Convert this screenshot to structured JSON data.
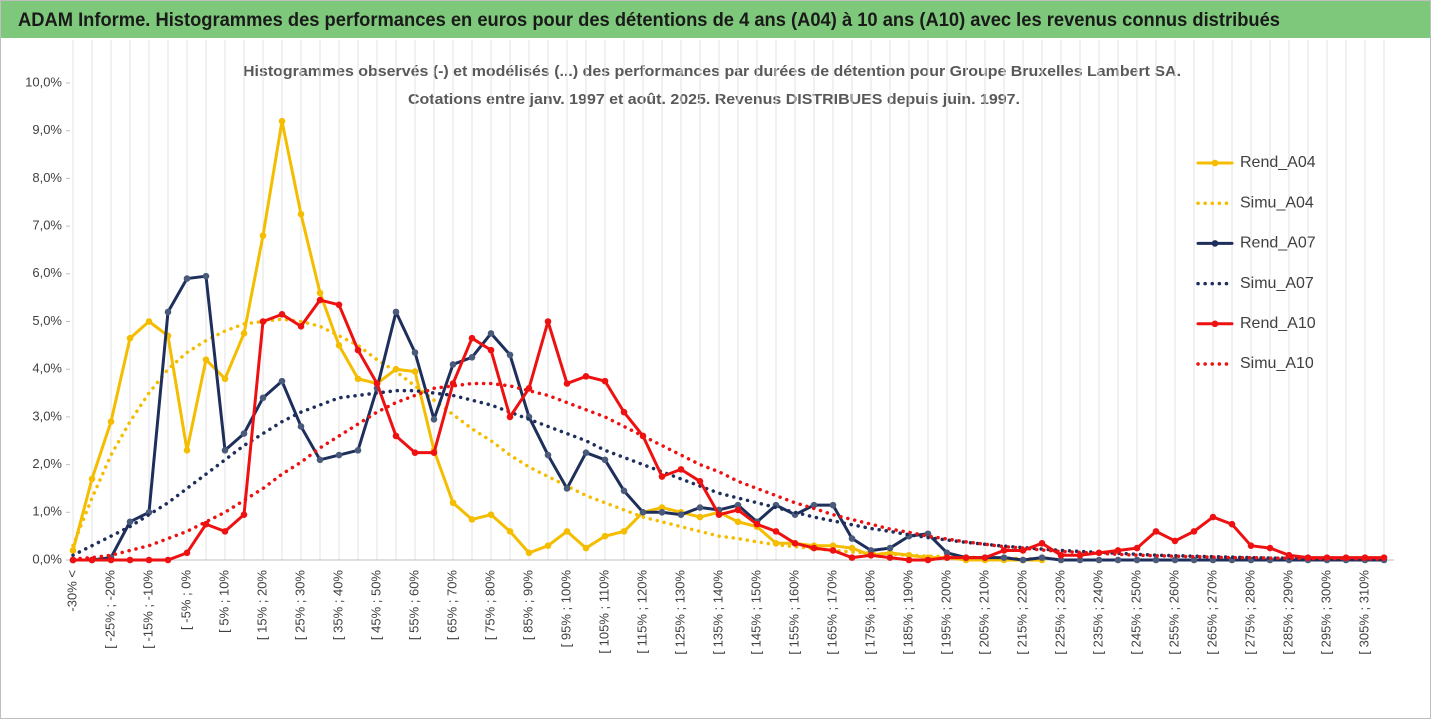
{
  "chart_data": {
    "type": "line",
    "title": "ADAM Informe. Histogrammes des performances en euros pour des détentions de 4 ans (A04) à 10 ans (A10) avec les revenus connus distribués",
    "subtitle": [
      "Histogrammes observés (-) et modélisés (...) des performances par durées de détention pour Groupe Bruxelles Lambert SA.",
      "Cotations entre janv. 1997 et août. 2025. Revenus DISTRIBUES depuis juin. 1997."
    ],
    "categories": [
      "-30% <",
      null,
      "[ -25% ; -20%",
      null,
      "[ -15% ; -10%",
      null,
      "[ -5% ; 0%",
      null,
      "[ 5% ; 10%",
      null,
      "[ 15% ; 20%",
      null,
      "[ 25% ; 30%",
      null,
      "[ 35% ; 40%",
      null,
      "[ 45% ; 50%",
      null,
      "[ 55% ; 60%",
      null,
      "[ 65% ; 70%",
      null,
      "[ 75% ; 80%",
      null,
      "[ 85% ; 90%",
      null,
      "[ 95% ; 100%",
      null,
      "[ 105% ; 110%",
      null,
      "[ 115% ; 120%",
      null,
      "[ 125% ; 130%",
      null,
      "[ 135% ; 140%",
      null,
      "[ 145% ; 150%",
      null,
      "[ 155% ; 160%",
      null,
      "[ 165% ; 170%",
      null,
      "[ 175% ; 180%",
      null,
      "[ 185% ; 190%",
      null,
      "[ 195% ; 200%",
      null,
      "[ 205% ; 210%",
      null,
      "[ 215% ; 220%",
      null,
      "[ 225% ; 230%",
      null,
      "[ 235% ; 240%",
      null,
      "[ 245% ; 250%",
      null,
      "[ 255% ; 260%",
      null,
      "[ 265% ; 270%",
      null,
      "[ 275% ; 280%",
      null,
      "[ 285% ; 290%",
      null,
      "[ 295% ; 300%",
      null,
      "[ 305% ; 310%",
      null
    ],
    "series": [
      {
        "name": "Rend_A04",
        "color": "#f5bd00",
        "style": "solid",
        "markers": true,
        "values": [
          0.2,
          1.7,
          2.9,
          4.65,
          5.0,
          4.7,
          2.3,
          4.2,
          3.8,
          4.75,
          6.8,
          9.2,
          7.25,
          5.6,
          4.5,
          3.8,
          3.7,
          4.0,
          3.95,
          2.3,
          1.2,
          0.85,
          0.95,
          0.6,
          0.15,
          0.3,
          0.6,
          0.25,
          0.5,
          0.6,
          1.0,
          1.1,
          1.0,
          0.9,
          1.0,
          0.8,
          0.7,
          0.35,
          0.35,
          0.3,
          0.3,
          0.25,
          0.1,
          0.15,
          0.1,
          0.05,
          0.05,
          0,
          0,
          0,
          0,
          0,
          null,
          null,
          null,
          null,
          null,
          null,
          null,
          null,
          null,
          null,
          null,
          null,
          null,
          null,
          null,
          null,
          null,
          null
        ]
      },
      {
        "name": "Simu_A04",
        "color": "#f5bd00",
        "style": "dotted",
        "markers": false,
        "values": [
          0.3,
          1.3,
          2.2,
          2.9,
          3.5,
          4.0,
          4.35,
          4.6,
          4.8,
          4.95,
          5.0,
          5.05,
          5.0,
          4.9,
          4.7,
          4.5,
          4.2,
          3.95,
          3.65,
          3.35,
          3.05,
          2.75,
          2.5,
          2.2,
          1.95,
          1.75,
          1.55,
          1.35,
          1.2,
          1.05,
          0.9,
          0.8,
          0.7,
          0.6,
          0.5,
          0.45,
          0.38,
          0.32,
          0.28,
          0.24,
          0.2,
          0.17,
          0.14,
          0.12,
          0.1,
          0.08,
          0.07,
          0.06,
          0.05,
          0.04,
          0.03,
          0.02,
          null,
          null,
          null,
          null,
          null,
          null,
          null,
          null,
          null,
          null,
          null,
          null,
          null,
          null,
          null,
          null,
          null,
          null
        ]
      },
      {
        "name": "Rend_A07",
        "color": "#1f2f5c",
        "style": "solid",
        "markers": true,
        "values": [
          0,
          0,
          0.05,
          0.8,
          1.0,
          5.2,
          5.9,
          5.95,
          2.3,
          2.65,
          3.4,
          3.75,
          2.8,
          2.1,
          2.2,
          2.3,
          3.6,
          5.2,
          4.35,
          2.95,
          4.1,
          4.25,
          4.75,
          4.3,
          3.0,
          2.2,
          1.5,
          2.25,
          2.1,
          1.45,
          1.0,
          1.0,
          0.95,
          1.1,
          1.05,
          1.15,
          0.8,
          1.15,
          0.95,
          1.15,
          1.15,
          0.45,
          0.2,
          0.25,
          0.5,
          0.55,
          0.15,
          0.05,
          0.05,
          0.05,
          0,
          0.05,
          0,
          0,
          0,
          0,
          0,
          0,
          0,
          0,
          0,
          0,
          0,
          0,
          0,
          0,
          0,
          0,
          0,
          0
        ]
      },
      {
        "name": "Simu_A07",
        "color": "#1f2f5c",
        "style": "dotted",
        "markers": false,
        "values": [
          0.1,
          0.3,
          0.5,
          0.7,
          0.95,
          1.2,
          1.5,
          1.8,
          2.1,
          2.4,
          2.65,
          2.9,
          3.1,
          3.25,
          3.4,
          3.45,
          3.5,
          3.55,
          3.55,
          3.5,
          3.45,
          3.35,
          3.25,
          3.1,
          2.95,
          2.8,
          2.65,
          2.5,
          2.3,
          2.15,
          2.0,
          1.85,
          1.7,
          1.55,
          1.4,
          1.3,
          1.2,
          1.1,
          1.0,
          0.9,
          0.82,
          0.74,
          0.66,
          0.6,
          0.53,
          0.47,
          0.42,
          0.37,
          0.33,
          0.29,
          0.26,
          0.23,
          0.2,
          0.18,
          0.16,
          0.14,
          0.12,
          0.1,
          0.09,
          0.08,
          0.07,
          0.06,
          0.05,
          0.04,
          0.04,
          0.03,
          0.03,
          0.02,
          0.02,
          0.02
        ]
      },
      {
        "name": "Rend_A10",
        "color": "#ee1111",
        "style": "solid",
        "markers": true,
        "values": [
          0,
          0,
          0,
          0,
          0,
          0,
          0.15,
          0.75,
          0.6,
          0.95,
          5.0,
          5.15,
          4.9,
          5.45,
          5.35,
          4.4,
          3.7,
          2.6,
          2.25,
          2.25,
          3.7,
          4.65,
          4.4,
          3.0,
          3.6,
          5.0,
          3.7,
          3.85,
          3.75,
          3.1,
          2.6,
          1.75,
          1.9,
          1.65,
          0.95,
          1.05,
          0.75,
          0.6,
          0.35,
          0.25,
          0.2,
          0.05,
          0.1,
          0.05,
          0,
          0,
          0.05,
          0.05,
          0.05,
          0.2,
          0.2,
          0.35,
          0.1,
          0.1,
          0.15,
          0.2,
          0.25,
          0.6,
          0.4,
          0.6,
          0.9,
          0.75,
          0.3,
          0.25,
          0.1,
          0.05,
          0.05,
          0.05,
          0.05,
          0.05
        ]
      },
      {
        "name": "Simu_A10",
        "color": "#ee1111",
        "style": "dotted",
        "markers": false,
        "values": [
          0.02,
          0.05,
          0.1,
          0.2,
          0.3,
          0.45,
          0.6,
          0.8,
          1.0,
          1.25,
          1.5,
          1.8,
          2.05,
          2.35,
          2.6,
          2.85,
          3.1,
          3.3,
          3.45,
          3.6,
          3.65,
          3.7,
          3.7,
          3.65,
          3.55,
          3.45,
          3.3,
          3.15,
          3.0,
          2.8,
          2.6,
          2.4,
          2.2,
          2.0,
          1.85,
          1.65,
          1.5,
          1.35,
          1.2,
          1.08,
          0.95,
          0.85,
          0.75,
          0.65,
          0.58,
          0.5,
          0.44,
          0.38,
          0.33,
          0.28,
          0.25,
          0.21,
          0.18,
          0.16,
          0.14,
          0.12,
          0.1,
          0.09,
          0.08,
          0.07,
          0.06,
          0.05,
          0.05,
          0.04,
          0.04,
          0.03,
          0.03,
          0.03,
          0.02,
          0.02
        ]
      }
    ],
    "ylim": [
      0,
      10
    ],
    "yticks": [
      {
        "value": 0,
        "label": "0,0%"
      },
      {
        "value": 1,
        "label": "1,0%"
      },
      {
        "value": 2,
        "label": "2,0%"
      },
      {
        "value": 3,
        "label": "3,0%"
      },
      {
        "value": 4,
        "label": "4,0%"
      },
      {
        "value": 5,
        "label": "5,0%"
      },
      {
        "value": 6,
        "label": "6,0%"
      },
      {
        "value": 7,
        "label": "7,0%"
      },
      {
        "value": 8,
        "label": "8,0%"
      },
      {
        "value": 9,
        "label": "9,0%"
      },
      {
        "value": 10,
        "label": "10,0%"
      }
    ],
    "grid": "x",
    "legend": "right"
  }
}
